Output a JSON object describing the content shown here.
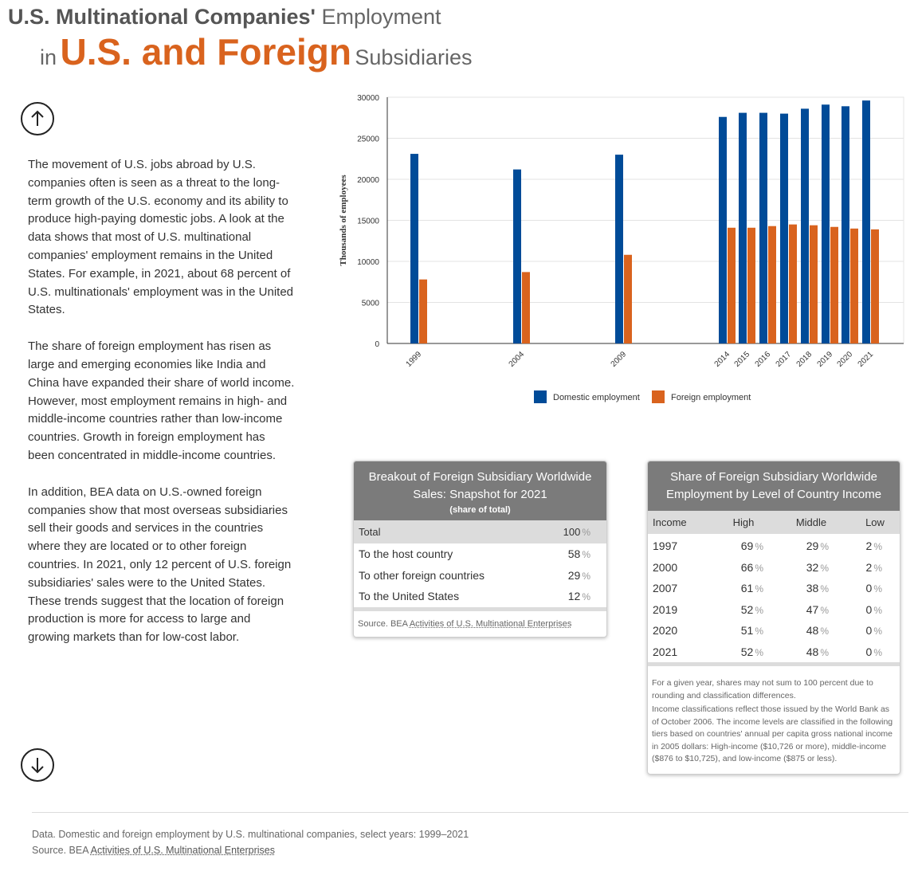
{
  "header": {
    "line1_bold": "U.S. Multinational Companies'",
    "line1_light": "Employment",
    "line2_in": "in",
    "line2_big": "U.S. and Foreign",
    "line2_light": "Subsidiaries"
  },
  "nav": {
    "up_icon": "arrow-up-icon",
    "down_icon": "arrow-down-icon"
  },
  "text": {
    "p1": "The movement of U.S. jobs abroad by U.S. companies often is seen as a threat to the long-term growth of the U.S. economy and its ability to produce high-paying domestic jobs. A look at the data shows that most of U.S. multinational companies' employment remains in the United States. For example, in 2021, about 68 percent of U.S. multinationals' employment was in the United States.",
    "p2": "The share of foreign employment has risen as large and emerging economies like India and China have expanded their share of world income. However, most employment remains in high- and middle-income countries rather than low-income countries. Growth in foreign employment has been concentrated in middle-income countries.",
    "p3": "In addition, BEA data on U.S.-owned foreign companies show that most overseas subsidiaries sell their goods and services in the countries where they are located or to other foreign countries. In 2021, only 12 percent of U.S. foreign subsidiaries' sales were to the United States. These trends suggest that the location of foreign production is more for access to large and growing markets than for low-cost labor."
  },
  "chart_data": {
    "type": "bar",
    "categories": [
      "1999",
      "2004",
      "2009",
      "2014",
      "2015",
      "2016",
      "2017",
      "2018",
      "2019",
      "2020",
      "2021"
    ],
    "series": [
      {
        "name": "Domestic employment",
        "color": "#004b98",
        "values": [
          23100,
          21200,
          23000,
          27600,
          28100,
          28100,
          28000,
          28600,
          29100,
          28900,
          29600
        ]
      },
      {
        "name": "Foreign employment",
        "color": "#d9631e",
        "values": [
          7800,
          8700,
          10800,
          14100,
          14100,
          14300,
          14500,
          14400,
          14200,
          14000,
          13900
        ]
      }
    ],
    "ylabel": "Thousands of employees",
    "ylim": [
      0,
      30000
    ],
    "yticks": [
      "0",
      "5000",
      "10000",
      "15000",
      "20000",
      "25000",
      "30000"
    ],
    "grid": true,
    "legend": "bottom"
  },
  "sales_table": {
    "title": "Breakout of Foreign Subsidiary Worldwide Sales: Snapshot for 2021",
    "subtitle": "(share of total)",
    "header": {
      "label": "Total",
      "value": "100"
    },
    "rows": [
      {
        "label": "To the host country",
        "value": "58"
      },
      {
        "label": "To other foreign countries",
        "value": "29"
      },
      {
        "label": "To the United States",
        "value": "12"
      }
    ],
    "source_prefix": "Source. BEA",
    "source_link": "Activities of U.S. Multinational Enterprises",
    "pct_symbol": "%"
  },
  "income_table": {
    "title": "Share of Foreign Subsidiary Worldwide Employment by Level of Country Income",
    "columns": [
      "Income",
      "High",
      "Middle",
      "Low"
    ],
    "rows": [
      {
        "year": "1997",
        "high": "69",
        "middle": "29",
        "low": "2"
      },
      {
        "year": "2000",
        "high": "66",
        "middle": "32",
        "low": "2"
      },
      {
        "year": "2007",
        "high": "61",
        "middle": "38",
        "low": "0"
      },
      {
        "year": "2019",
        "high": "52",
        "middle": "47",
        "low": "0"
      },
      {
        "year": "2020",
        "high": "51",
        "middle": "48",
        "low": "0"
      },
      {
        "year": "2021",
        "high": "52",
        "middle": "48",
        "low": "0"
      }
    ],
    "note1": "For a given year, shares may not sum to 100 percent due to rounding and classification differences.",
    "note2": "Income classifications reflect those issued by the World Bank as of October 2006. The income levels are classified in the following tiers based on countries' annual per capita gross national income in 2005 dollars: High-income ($10,726 or more), middle-income ($876 to $10,725), and low-income ($875 or less)."
  },
  "footer": {
    "data_line": "Data. Domestic and foreign employment by U.S. multinational companies, select years: 1999–2021",
    "source_prefix": "Source. BEA",
    "source_link": "Activities of U.S. Multinational Enterprises"
  }
}
